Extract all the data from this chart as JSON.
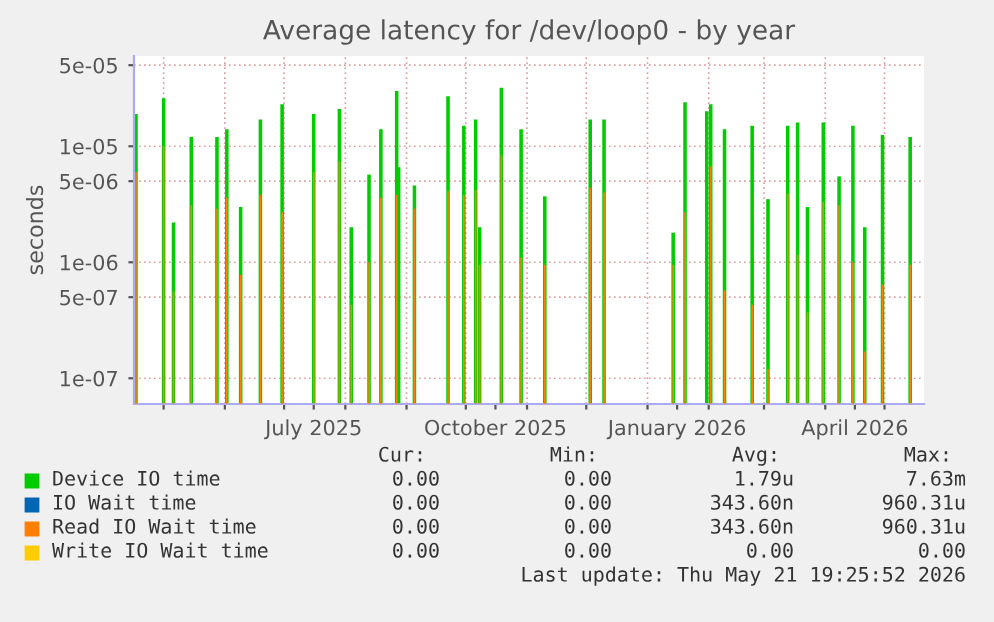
{
  "chart_data": {
    "type": "bar",
    "title": "Average latency for /dev/loop0 - by year",
    "ylabel": "seconds",
    "x": [
      "2025-04-17",
      "2025-05-01",
      "2025-05-06",
      "2025-05-15",
      "2025-05-28",
      "2025-06-02",
      "2025-06-09",
      "2025-06-19",
      "2025-06-30",
      "2025-07-16",
      "2025-07-29",
      "2025-08-04",
      "2025-08-13",
      "2025-08-19",
      "2025-08-27",
      "2025-08-28",
      "2025-09-05",
      "2025-09-22",
      "2025-09-30",
      "2025-10-06",
      "2025-10-08",
      "2025-10-19",
      "2025-10-29",
      "2025-11-10",
      "2025-12-03",
      "2025-12-10",
      "2026-01-14",
      "2026-01-20",
      "2026-01-31",
      "2026-02-02",
      "2026-02-09",
      "2026-02-23",
      "2026-03-03",
      "2026-03-13",
      "2026-03-18",
      "2026-03-23",
      "2026-03-31",
      "2026-04-08",
      "2026-04-15",
      "2026-04-21",
      "2026-04-30",
      "2026-05-14"
    ],
    "series": [
      {
        "name": "Device IO time",
        "color": "#00cc00",
        "values": [
          1.9e-05,
          2.6e-05,
          2.2e-06,
          1.2e-05,
          1.2e-05,
          1.4e-05,
          3e-06,
          1.7e-05,
          2.3e-05,
          1.9e-05,
          2.1e-05,
          2e-06,
          5.7e-06,
          1.4e-05,
          3e-05,
          6.6e-06,
          4.6e-06,
          2.7e-05,
          1.5e-05,
          1.7e-05,
          2e-06,
          3.2e-05,
          1.4e-05,
          3.7e-06,
          1.7e-05,
          1.7e-05,
          1.8e-06,
          2.4e-05,
          2e-05,
          2.3e-05,
          1.4e-05,
          1.5e-05,
          3.5e-06,
          1.5e-05,
          1.6e-05,
          3e-06,
          1.6e-05,
          5.5e-06,
          1.5e-05,
          2e-06,
          1.25e-05,
          1.2e-05
        ]
      },
      {
        "name": "IO Wait time",
        "color": "#0066b3",
        "values": [
          null,
          null,
          null,
          null,
          null,
          null,
          null,
          null,
          null,
          null,
          null,
          null,
          null,
          null,
          null,
          null,
          null,
          null,
          null,
          null,
          null,
          null,
          null,
          null,
          null,
          null,
          null,
          null,
          null,
          null,
          null,
          null,
          null,
          null,
          null,
          null,
          null,
          null,
          null,
          null,
          null,
          null
        ]
      },
      {
        "name": "Read IO Wait time",
        "color": "#ff8000",
        "values": [
          6e-06,
          1e-05,
          5.6e-07,
          3.1e-06,
          2.9e-06,
          3.6e-06,
          7.8e-07,
          3.8e-06,
          2.7e-06,
          6e-06,
          7.4e-06,
          4.3e-07,
          1e-06,
          3.6e-06,
          3.8e-06,
          null,
          2.9e-06,
          4.1e-06,
          3.8e-06,
          4.2e-06,
          9.5e-07,
          8.4e-06,
          1.1e-06,
          9.5e-07,
          4.4e-06,
          4e-06,
          9.5e-07,
          2.7e-06,
          null,
          6.7e-06,
          5.7e-07,
          4.3e-07,
          1.2e-07,
          3.9e-06,
          1.16e-06,
          3.7e-07,
          3.3e-06,
          3.1e-06,
          1e-06,
          1.7e-07,
          6.4e-07,
          9.5e-07
        ]
      },
      {
        "name": "Write IO Wait time",
        "color": "#ffcc00",
        "values": [
          null,
          null,
          null,
          null,
          null,
          null,
          null,
          null,
          null,
          null,
          null,
          null,
          null,
          null,
          null,
          null,
          null,
          null,
          null,
          null,
          null,
          null,
          null,
          null,
          null,
          null,
          null,
          null,
          null,
          null,
          null,
          null,
          null,
          null,
          null,
          null,
          null,
          null,
          null,
          null,
          null,
          null
        ]
      }
    ],
    "log": true,
    "ylim": [
      6e-08,
      6e-05
    ],
    "yticks": [
      {
        "value": 1e-07,
        "label": "1e-07"
      },
      {
        "value": 5e-07,
        "label": "5e-07"
      },
      {
        "value": 1e-06,
        "label": "1e-06"
      },
      {
        "value": 5e-06,
        "label": "5e-06"
      },
      {
        "value": 1e-05,
        "label": "1e-05"
      },
      {
        "value": 5e-05,
        "label": "5e-05"
      }
    ],
    "xlim": [
      "2025-04-16",
      "2026-05-21"
    ],
    "xticks": [
      {
        "value": "2025-05-01",
        "label": null
      },
      {
        "value": "2025-06-01",
        "label": null
      },
      {
        "value": "2025-07-01",
        "label": null
      },
      {
        "value": "2025-07-16",
        "label": "July 2025"
      },
      {
        "value": "2025-08-01",
        "label": null
      },
      {
        "value": "2025-09-01",
        "label": null
      },
      {
        "value": "2025-10-01",
        "label": null
      },
      {
        "value": "2025-10-16",
        "label": "October 2025"
      },
      {
        "value": "2025-11-01",
        "label": null
      },
      {
        "value": "2025-12-01",
        "label": null
      },
      {
        "value": "2026-01-01",
        "label": null
      },
      {
        "value": "2026-01-16",
        "label": "January 2026"
      },
      {
        "value": "2026-02-01",
        "label": null
      },
      {
        "value": "2026-03-01",
        "label": null
      },
      {
        "value": "2026-04-01",
        "label": null
      },
      {
        "value": "2026-04-16",
        "label": "April 2026"
      },
      {
        "value": "2026-05-01",
        "label": null
      }
    ],
    "grid": true,
    "legend": "bottom",
    "annotations": [
      "Cur:",
      "Min:",
      "Avg:",
      "Max:",
      "0.00",
      "0.00",
      "1.79u",
      "7.63m",
      "0.00",
      "0.00",
      "343.60n",
      "960.31u",
      "0.00",
      "0.00",
      "343.60n",
      "960.31u",
      "0.00",
      "0.00",
      "0.00",
      "0.00",
      "Last update: Thu May 21 19:25:52 2026"
    ]
  }
}
